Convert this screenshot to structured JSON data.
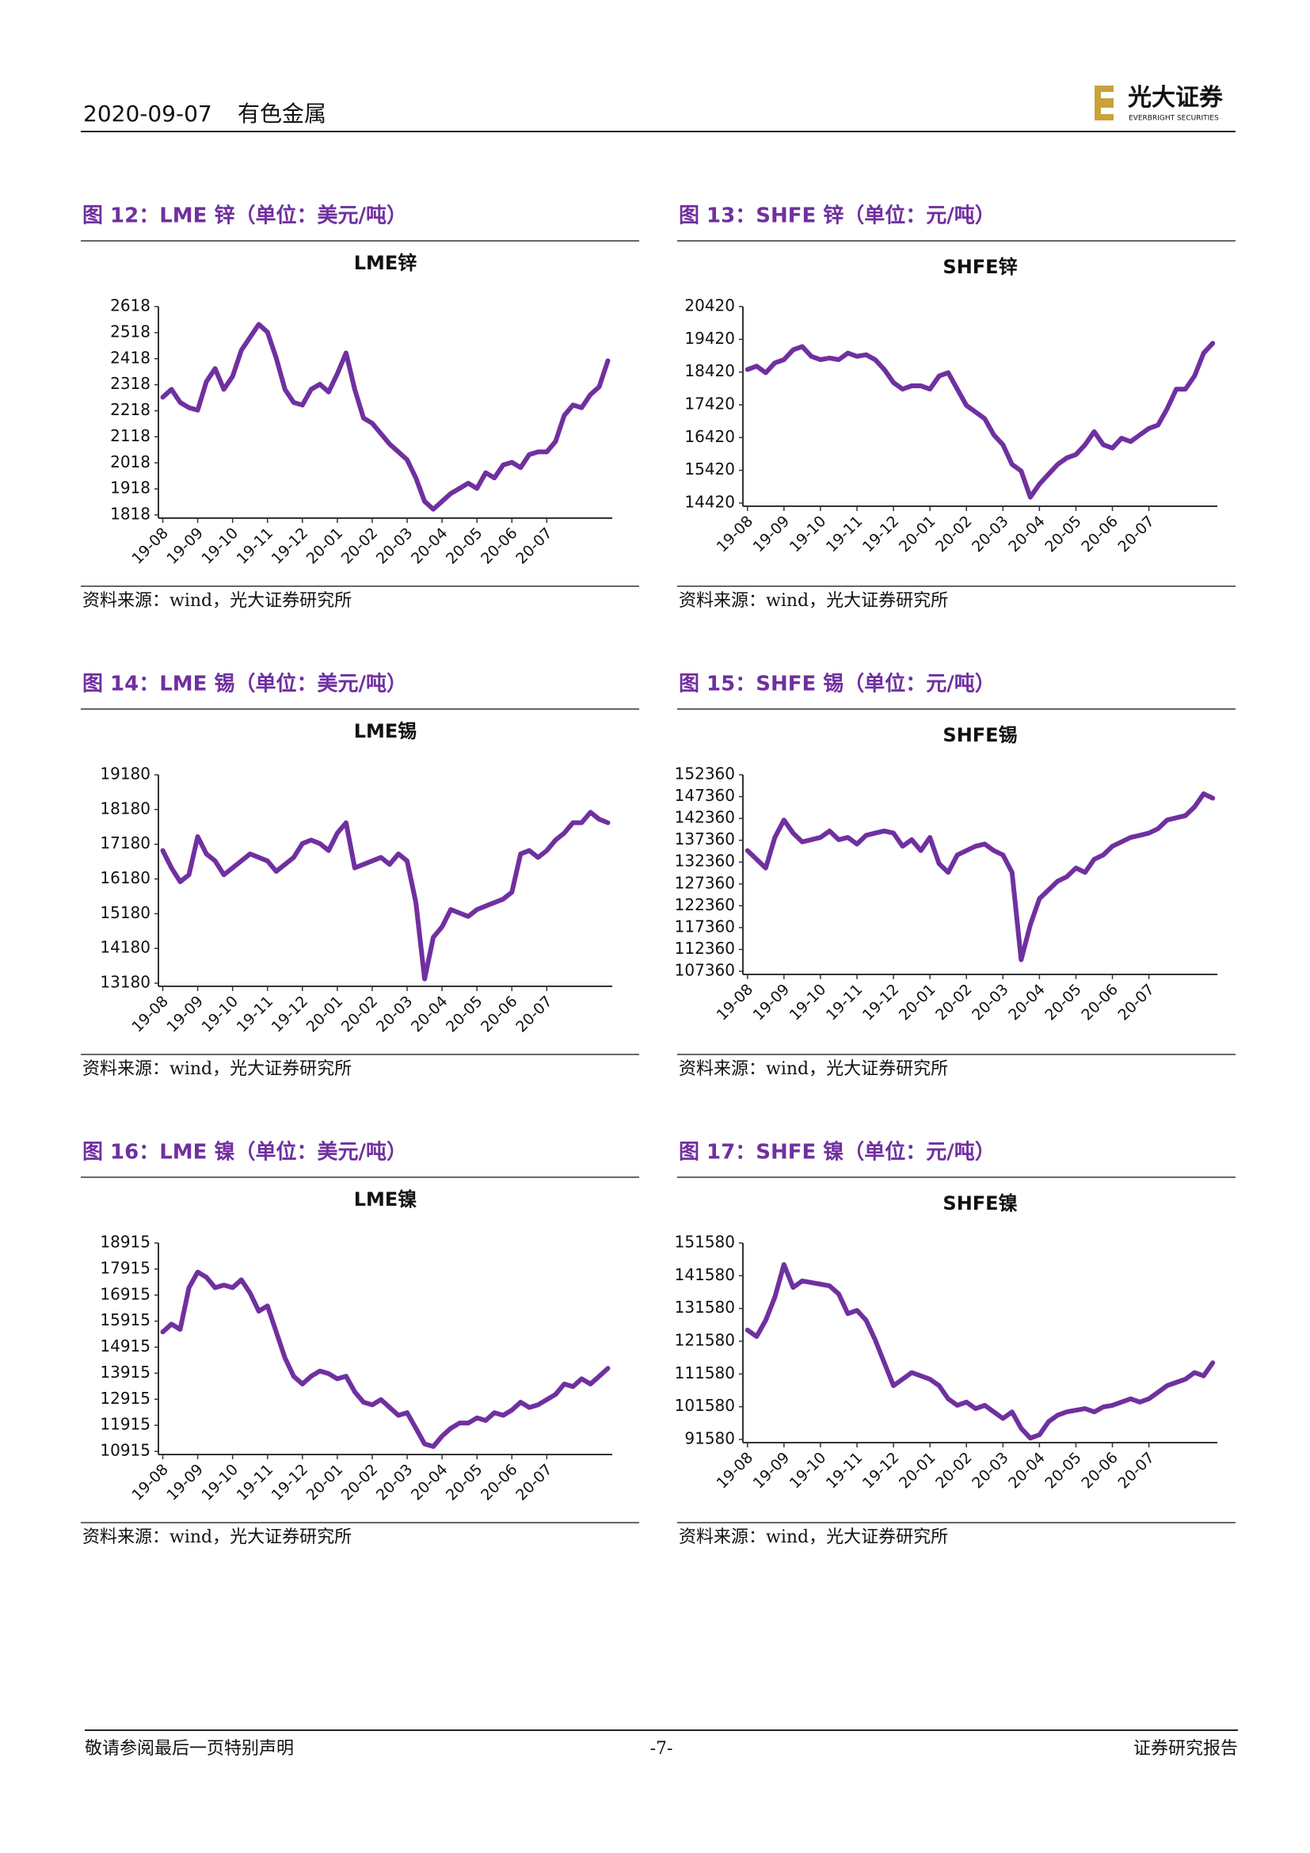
{
  "header": {
    "date": "2020-09-07",
    "section": "有色金属",
    "logo_cn": "光大证券",
    "logo_en": "EVERBRIGHT SECURITIES"
  },
  "chart_data": [
    {
      "type": "line",
      "caption": "图 12：LME 锌（单位：美元/吨）",
      "title": "LME锌",
      "source": "资料来源：wind，光大证券研究所",
      "color": "#7030a0",
      "categories": [
        "19-08",
        null,
        null,
        null,
        "19-09",
        null,
        null,
        null,
        "19-10",
        null,
        null,
        null,
        "19-11",
        null,
        null,
        null,
        "19-12",
        null,
        null,
        null,
        "20-01",
        null,
        null,
        null,
        "20-02",
        null,
        null,
        null,
        "20-03",
        null,
        null,
        null,
        "20-04",
        null,
        null,
        null,
        "20-05",
        null,
        null,
        null,
        "20-06",
        null,
        null,
        null,
        "20-07",
        null,
        null,
        null,
        null,
        null,
        null,
        null
      ],
      "values": [
        2270,
        2300,
        2250,
        2230,
        2220,
        2330,
        2380,
        2300,
        2350,
        2450,
        2500,
        2550,
        2520,
        2420,
        2300,
        2250,
        2240,
        2300,
        2320,
        2290,
        2360,
        2440,
        2300,
        2190,
        2170,
        2130,
        2090,
        2060,
        2030,
        1960,
        1870,
        1840,
        1870,
        1900,
        1920,
        1940,
        1920,
        1980,
        1960,
        2010,
        2020,
        2000,
        2050,
        2060,
        2060,
        2100,
        2200,
        2240,
        2230,
        2280,
        2310,
        2410
      ],
      "ylim": [
        1818,
        2618
      ],
      "yticks": [
        1818,
        1918,
        2018,
        2118,
        2218,
        2318,
        2418,
        2518,
        2618
      ]
    },
    {
      "type": "line",
      "caption": "图 13：SHFE 锌（单位：元/吨）",
      "title": "SHFE锌",
      "source": "资料来源：wind，光大证券研究所",
      "color": "#7030a0",
      "categories": [
        "19-08",
        null,
        null,
        null,
        "19-09",
        null,
        null,
        null,
        "19-10",
        null,
        null,
        null,
        "19-11",
        null,
        null,
        null,
        "19-12",
        null,
        null,
        null,
        "20-01",
        null,
        null,
        null,
        "20-02",
        null,
        null,
        null,
        "20-03",
        null,
        null,
        null,
        "20-04",
        null,
        null,
        null,
        "20-05",
        null,
        null,
        null,
        "20-06",
        null,
        null,
        null,
        "20-07",
        null,
        null,
        null,
        null,
        null,
        null,
        null
      ],
      "values": [
        18500,
        18600,
        18400,
        18700,
        18800,
        19100,
        19200,
        18900,
        18800,
        18850,
        18800,
        19000,
        18900,
        18950,
        18800,
        18500,
        18100,
        17900,
        18000,
        18000,
        17900,
        18300,
        18400,
        17900,
        17400,
        17200,
        17000,
        16500,
        16200,
        15600,
        15400,
        14600,
        15000,
        15300,
        15600,
        15800,
        15900,
        16200,
        16600,
        16200,
        16100,
        16400,
        16300,
        16500,
        16700,
        16800,
        17300,
        17900,
        17900,
        18300,
        19000,
        19300
      ],
      "ylim": [
        14420,
        20420
      ],
      "yticks": [
        14420,
        15420,
        16420,
        17420,
        18420,
        19420,
        20420
      ]
    },
    {
      "type": "line",
      "caption": "图 14：LME 锡（单位：美元/吨）",
      "title": "LME锡",
      "source": "资料来源：wind，光大证券研究所",
      "color": "#7030a0",
      "categories": [
        "19-08",
        null,
        null,
        null,
        "19-09",
        null,
        null,
        null,
        "19-10",
        null,
        null,
        null,
        "19-11",
        null,
        null,
        null,
        "19-12",
        null,
        null,
        null,
        "20-01",
        null,
        null,
        null,
        "20-02",
        null,
        null,
        null,
        "20-03",
        null,
        null,
        null,
        "20-04",
        null,
        null,
        null,
        "20-05",
        null,
        null,
        null,
        "20-06",
        null,
        null,
        null,
        "20-07",
        null,
        null,
        null,
        null,
        null,
        null,
        null
      ],
      "values": [
        17000,
        16500,
        16100,
        16300,
        17400,
        16900,
        16700,
        16300,
        16500,
        16700,
        16900,
        16800,
        16700,
        16400,
        16600,
        16800,
        17200,
        17300,
        17200,
        17000,
        17500,
        17800,
        16500,
        16600,
        16700,
        16800,
        16600,
        16900,
        16700,
        15500,
        13300,
        14500,
        14800,
        15300,
        15200,
        15100,
        15300,
        15400,
        15500,
        15600,
        15800,
        16900,
        17000,
        16800,
        17000,
        17300,
        17500,
        17800,
        17800,
        18100,
        17900,
        17800
      ],
      "ylim": [
        13180,
        19180
      ],
      "yticks": [
        13180,
        14180,
        15180,
        16180,
        17180,
        18180,
        19180
      ]
    },
    {
      "type": "line",
      "caption": "图 15：SHFE 锡（单位：元/吨）",
      "title": "SHFE锡",
      "source": "资料来源：wind，光大证券研究所",
      "color": "#7030a0",
      "categories": [
        "19-08",
        null,
        null,
        null,
        "19-09",
        null,
        null,
        null,
        "19-10",
        null,
        null,
        null,
        "19-11",
        null,
        null,
        null,
        "19-12",
        null,
        null,
        null,
        "20-01",
        null,
        null,
        null,
        "20-02",
        null,
        null,
        null,
        "20-03",
        null,
        null,
        null,
        "20-04",
        null,
        null,
        null,
        "20-05",
        null,
        null,
        null,
        "20-06",
        null,
        null,
        null,
        "20-07",
        null,
        null,
        null,
        null,
        null,
        null,
        null
      ],
      "values": [
        135000,
        133000,
        131000,
        138000,
        142000,
        139000,
        137000,
        137500,
        138000,
        139500,
        137500,
        138000,
        136500,
        138500,
        139000,
        139500,
        139000,
        136000,
        137500,
        135000,
        138000,
        132000,
        130000,
        134000,
        135000,
        136000,
        136500,
        135000,
        134000,
        130000,
        110000,
        118000,
        124000,
        126000,
        128000,
        129000,
        131000,
        130000,
        133000,
        134000,
        136000,
        137000,
        138000,
        138500,
        139000,
        140000,
        142000,
        142500,
        143000,
        145000,
        148000,
        147000
      ],
      "ylim": [
        107360,
        152360
      ],
      "yticks": [
        107360,
        112360,
        117360,
        122360,
        127360,
        132360,
        137360,
        142360,
        147360,
        152360
      ]
    },
    {
      "type": "line",
      "caption": "图 16：LME 镍（单位：美元/吨）",
      "title": "LME镍",
      "source": "资料来源：wind，光大证券研究所",
      "color": "#7030a0",
      "categories": [
        "19-08",
        null,
        null,
        null,
        "19-09",
        null,
        null,
        null,
        "19-10",
        null,
        null,
        null,
        "19-11",
        null,
        null,
        null,
        "19-12",
        null,
        null,
        null,
        "20-01",
        null,
        null,
        null,
        "20-02",
        null,
        null,
        null,
        "20-03",
        null,
        null,
        null,
        "20-04",
        null,
        null,
        null,
        "20-05",
        null,
        null,
        null,
        "20-06",
        null,
        null,
        null,
        "20-07",
        null,
        null,
        null,
        null,
        null,
        null,
        null
      ],
      "values": [
        15500,
        15800,
        15600,
        17200,
        17800,
        17600,
        17200,
        17300,
        17200,
        17500,
        17000,
        16300,
        16500,
        15500,
        14500,
        13800,
        13500,
        13800,
        14000,
        13900,
        13700,
        13800,
        13200,
        12800,
        12700,
        12900,
        12600,
        12300,
        12400,
        11800,
        11200,
        11100,
        11500,
        11800,
        12000,
        12000,
        12200,
        12100,
        12400,
        12300,
        12500,
        12800,
        12600,
        12700,
        12900,
        13100,
        13500,
        13400,
        13700,
        13500,
        13800,
        14100
      ],
      "ylim": [
        10915,
        18915
      ],
      "yticks": [
        10915,
        11915,
        12915,
        13915,
        14915,
        15915,
        16915,
        17915,
        18915
      ]
    },
    {
      "type": "line",
      "caption": "图 17：SHFE 镍（单位：元/吨）",
      "title": "SHFE镍",
      "source": "资料来源：wind，光大证券研究所",
      "color": "#7030a0",
      "categories": [
        "19-08",
        null,
        null,
        null,
        "19-09",
        null,
        null,
        null,
        "19-10",
        null,
        null,
        null,
        "19-11",
        null,
        null,
        null,
        "19-12",
        null,
        null,
        null,
        "20-01",
        null,
        null,
        null,
        "20-02",
        null,
        null,
        null,
        "20-03",
        null,
        null,
        null,
        "20-04",
        null,
        null,
        null,
        "20-05",
        null,
        null,
        null,
        "20-06",
        null,
        null,
        null,
        "20-07",
        null,
        null,
        null,
        null,
        null,
        null,
        null
      ],
      "values": [
        125000,
        123000,
        128000,
        135000,
        145000,
        138000,
        140000,
        139500,
        139000,
        138500,
        136000,
        130000,
        131000,
        128000,
        122000,
        115000,
        108000,
        110000,
        112000,
        111000,
        110000,
        108000,
        104000,
        102000,
        103000,
        101000,
        102000,
        100000,
        98000,
        100000,
        95000,
        92000,
        93000,
        97000,
        99000,
        100000,
        100500,
        101000,
        100000,
        101500,
        102000,
        103000,
        104000,
        103000,
        104000,
        106000,
        108000,
        109000,
        110000,
        112000,
        111000,
        115000
      ],
      "ylim": [
        91580,
        151580
      ],
      "yticks": [
        91580,
        101580,
        111580,
        121580,
        131580,
        141580,
        151580
      ]
    }
  ],
  "footer": {
    "left": "敬请参阅最后一页特别声明",
    "page": "-7-",
    "right": "证券研究报告"
  }
}
